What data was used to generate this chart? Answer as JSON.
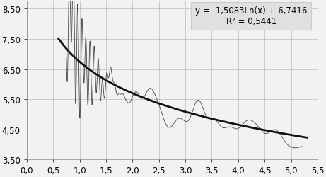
{
  "title": "",
  "xlabel": "",
  "ylabel": "",
  "xlim": [
    0.0,
    5.5
  ],
  "ylim": [
    3.5,
    8.75
  ],
  "xticks": [
    0.0,
    0.5,
    1.0,
    1.5,
    2.0,
    2.5,
    3.0,
    3.5,
    4.0,
    4.5,
    5.0,
    5.5
  ],
  "yticks": [
    3.5,
    4.5,
    5.5,
    6.5,
    7.5,
    8.5
  ],
  "ytick_labels": [
    "3,50",
    "4,50",
    "5,50",
    "6,50",
    "7,50",
    "8,50"
  ],
  "xtick_labels": [
    "0,0",
    "0,5",
    "1,0",
    "1,5",
    "2,0",
    "2,5",
    "3,0",
    "3,5",
    "4,0",
    "4,5",
    "5,0",
    "5,5"
  ],
  "equation": "y = -1,5083Ln(x) + 6,7416",
  "r_squared": "R² = 0,5441",
  "log_a": -1.5083,
  "log_b": 6.7416,
  "line_color": "#444444",
  "trend_color": "#111111",
  "bg_color": "#f2f2f2",
  "box_color": "#e0e0e0",
  "grid_color": "#bbbbbb",
  "font_size": 8.5
}
